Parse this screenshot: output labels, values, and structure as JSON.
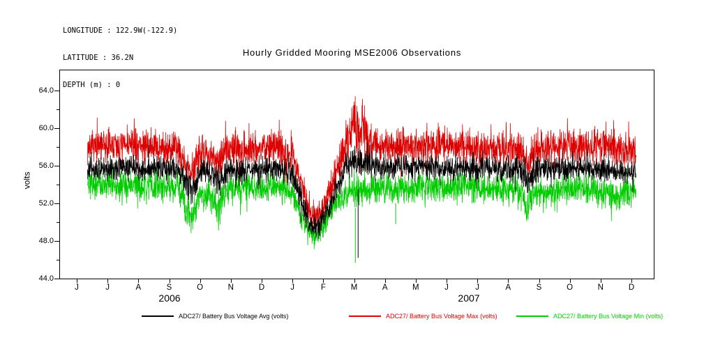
{
  "header": {
    "line1": "LONGITUDE : 122.9W(-122.9)",
    "line2": "LATITUDE : 36.2N",
    "line3": "DEPTH (m) : 0"
  },
  "title": "Hourly Gridded Mooring MSE2006 Observations",
  "y_axis": {
    "label": "volts",
    "ticks": [
      "64.0",
      "60.0",
      "56.0",
      "52.0",
      "48.0",
      "44.0"
    ]
  },
  "x_axis": {
    "month_ticks": [
      "J",
      "J",
      "A",
      "S",
      "O",
      "N",
      "D",
      "J",
      "F",
      "M",
      "A",
      "M",
      "J",
      "J",
      "A",
      "S",
      "O",
      "N",
      "D"
    ],
    "year_labels": [
      {
        "text": "2006"
      },
      {
        "text": "2007"
      }
    ]
  },
  "legend": [
    {
      "label": "ADC27/ Battery Bus Voltage Avg (volts)",
      "color": "#000000"
    },
    {
      "label": "ADC27/ Battery Bus Voltage Max (volts)",
      "color": "#dd0000"
    },
    {
      "label": "ADC27/ Battery Bus Voltage Min (volts)",
      "color": "#00cc00"
    }
  ],
  "chart_data": {
    "type": "line",
    "title": "Hourly Gridded Mooring MSE2006 Observations",
    "xlabel": "",
    "ylabel": "volts",
    "ylim": [
      44.0,
      66.2
    ],
    "y_major_ticks": [
      44,
      48,
      52,
      56,
      60,
      64
    ],
    "y_minor_ticks": [
      46,
      50,
      54,
      58,
      62
    ],
    "x_months": [
      "J",
      "J",
      "A",
      "S",
      "O",
      "N",
      "D",
      "J",
      "F",
      "M",
      "A",
      "M",
      "J",
      "J",
      "A",
      "S",
      "O",
      "N",
      "D"
    ],
    "x_years": [
      "2006",
      "2007"
    ],
    "t_start": 0.35,
    "t_end": 18.15,
    "series": [
      {
        "name": "ADC27/ Battery Bus Voltage Avg (volts)",
        "color": "#000000",
        "envelope": [
          [
            0.35,
            55.7,
            1.4
          ],
          [
            2.0,
            55.8,
            1.5
          ],
          [
            3.3,
            55.6,
            1.5
          ],
          [
            3.6,
            54.2,
            1.9
          ],
          [
            3.8,
            53.6,
            2.0
          ],
          [
            4.0,
            55.3,
            1.5
          ],
          [
            4.5,
            55.0,
            1.7
          ],
          [
            4.65,
            54.0,
            1.9
          ],
          [
            4.9,
            55.5,
            1.5
          ],
          [
            6.5,
            55.8,
            1.5
          ],
          [
            7.0,
            55.0,
            1.5
          ],
          [
            7.25,
            52.6,
            1.7
          ],
          [
            7.55,
            49.8,
            1.6
          ],
          [
            7.8,
            49.2,
            1.5
          ],
          [
            8.1,
            50.9,
            1.7
          ],
          [
            8.45,
            53.8,
            1.6
          ],
          [
            8.75,
            55.8,
            1.7
          ],
          [
            9.0,
            56.5,
            1.8
          ],
          [
            9.3,
            56.3,
            1.8
          ],
          [
            9.6,
            55.9,
            1.6
          ],
          [
            12.0,
            55.8,
            1.5
          ],
          [
            14.4,
            55.6,
            1.6
          ],
          [
            14.65,
            54.4,
            1.9
          ],
          [
            14.9,
            55.6,
            1.6
          ],
          [
            16.5,
            55.8,
            1.5
          ],
          [
            18.15,
            55.2,
            1.4
          ]
        ]
      },
      {
        "name": "ADC27/ Battery Bus Voltage Max (volts)",
        "color": "#dd0000",
        "envelope": [
          [
            0.35,
            58.0,
            2.1
          ],
          [
            2.0,
            58.2,
            2.2
          ],
          [
            3.3,
            57.8,
            2.2
          ],
          [
            3.55,
            56.0,
            2.4
          ],
          [
            3.75,
            55.2,
            2.6
          ],
          [
            3.95,
            57.5,
            2.2
          ],
          [
            4.45,
            57.2,
            2.3
          ],
          [
            4.6,
            56.0,
            2.6
          ],
          [
            4.85,
            57.8,
            2.2
          ],
          [
            6.5,
            58.0,
            2.2
          ],
          [
            7.0,
            57.2,
            2.1
          ],
          [
            7.25,
            54.5,
            2.0
          ],
          [
            7.55,
            51.2,
            1.9
          ],
          [
            7.8,
            50.6,
            1.8
          ],
          [
            8.1,
            52.3,
            2.0
          ],
          [
            8.45,
            55.8,
            2.1
          ],
          [
            8.75,
            58.5,
            2.6
          ],
          [
            8.95,
            60.5,
            3.6
          ],
          [
            9.25,
            60.2,
            3.8
          ],
          [
            9.45,
            58.8,
            2.8
          ],
          [
            9.7,
            58.2,
            2.3
          ],
          [
            12.0,
            58.1,
            2.2
          ],
          [
            14.4,
            57.8,
            2.2
          ],
          [
            14.65,
            56.2,
            2.5
          ],
          [
            14.9,
            57.8,
            2.2
          ],
          [
            16.0,
            58.0,
            2.2
          ],
          [
            17.5,
            58.2,
            2.3
          ],
          [
            18.15,
            57.2,
            2.0
          ]
        ]
      },
      {
        "name": "ADC27/ Battery Bus Voltage Min (volts)",
        "color": "#00cc00",
        "envelope": [
          [
            0.35,
            54.0,
            1.8
          ],
          [
            2.0,
            53.9,
            1.8
          ],
          [
            3.3,
            53.6,
            1.9
          ],
          [
            3.55,
            51.8,
            2.4
          ],
          [
            3.75,
            50.2,
            2.3
          ],
          [
            3.95,
            53.0,
            1.9
          ],
          [
            4.45,
            52.6,
            2.1
          ],
          [
            4.6,
            51.0,
            2.4
          ],
          [
            4.85,
            53.4,
            1.9
          ],
          [
            6.5,
            53.8,
            1.8
          ],
          [
            7.0,
            53.0,
            1.8
          ],
          [
            7.25,
            50.9,
            1.6
          ],
          [
            7.55,
            48.9,
            1.4
          ],
          [
            7.8,
            48.5,
            1.3
          ],
          [
            8.1,
            50.2,
            1.6
          ],
          [
            8.45,
            52.4,
            1.7
          ],
          [
            8.8,
            53.2,
            1.9
          ],
          [
            9.1,
            53.4,
            2.0
          ],
          [
            9.5,
            53.6,
            1.9
          ],
          [
            12.0,
            53.8,
            1.8
          ],
          [
            14.4,
            53.3,
            1.9
          ],
          [
            14.6,
            51.6,
            2.3
          ],
          [
            14.8,
            53.2,
            1.9
          ],
          [
            16.5,
            53.7,
            1.8
          ],
          [
            17.4,
            52.8,
            2.0
          ],
          [
            18.15,
            53.2,
            1.7
          ]
        ]
      }
    ],
    "draw_order": [
      1,
      2,
      0
    ],
    "events": [
      {
        "series_index": 2,
        "t": 9.04,
        "from": 51.5,
        "to": 45.7
      },
      {
        "series_index": 0,
        "t": 9.13,
        "from": 53.5,
        "to": 46.2
      },
      {
        "series_index": 2,
        "t": 10.35,
        "from": 52.0,
        "to": 49.8
      }
    ],
    "noise": {
      "seed": 7,
      "steps_per_month": 150,
      "spike_prob": 0.08,
      "spike_gain": 1.7,
      "clamp": [
        45.4,
        64.7
      ]
    }
  }
}
